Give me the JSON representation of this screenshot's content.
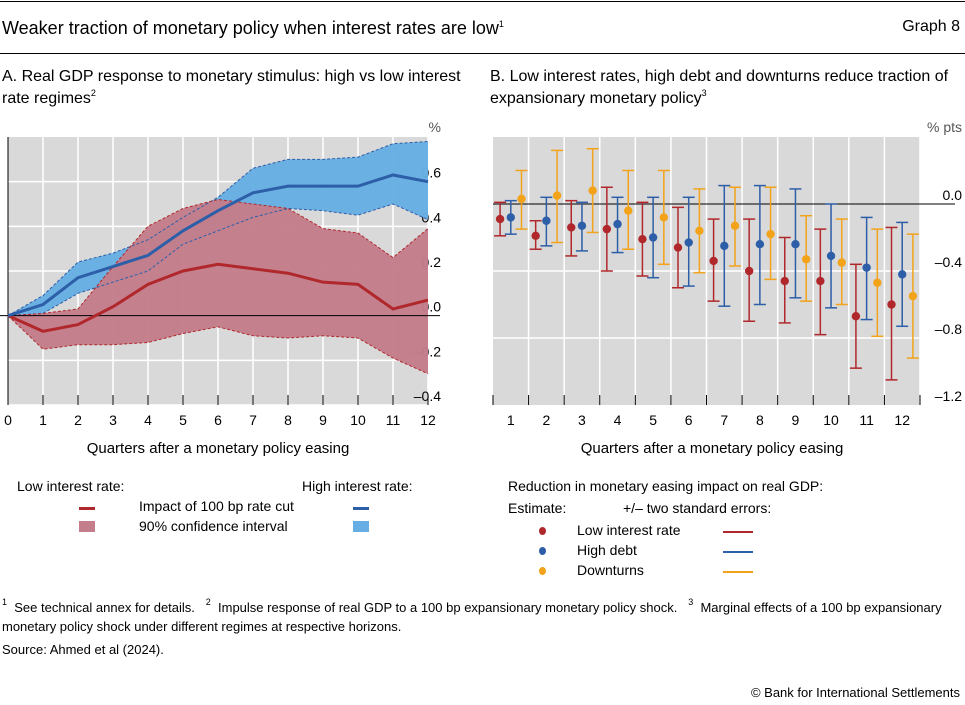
{
  "header": {
    "title": "Weaker traction of monetary policy when interest rates are low",
    "title_sup": "1",
    "graph_no": "Graph 8"
  },
  "colors": {
    "red": "#b0282c",
    "blue": "#2d5ea8",
    "red_band": "#c47d8b",
    "blue_band": "#66aee3",
    "yellow": "#f2a31a",
    "plot_bg": "#d9d9d9"
  },
  "chart_data": [
    {
      "type": "line",
      "title": "A. Real GDP response to monetary stimulus: high vs low interest rate regimes",
      "title_sup": "2",
      "unit": "%",
      "xlabel": "Quarters after a monetary policy easing",
      "x": [
        0,
        1,
        2,
        3,
        4,
        5,
        6,
        7,
        8,
        9,
        10,
        11,
        12
      ],
      "xlim": [
        0,
        12
      ],
      "ylim": [
        -0.4,
        0.8
      ],
      "yticks": [
        "0.6",
        "0.4",
        "0.2",
        "0.0",
        "–0.2",
        "–0.4"
      ],
      "ytick_values": [
        0.6,
        0.4,
        0.2,
        0.0,
        -0.2,
        -0.4
      ],
      "grid": true,
      "series": [
        {
          "group": "Low interest rate",
          "name": "Impact of 100 bp rate cut",
          "color": "red",
          "values": [
            0,
            -0.07,
            -0.04,
            0.04,
            0.14,
            0.2,
            0.23,
            0.21,
            0.19,
            0.15,
            0.14,
            0.03,
            0.07
          ],
          "ci_name": "90% confidence interval",
          "ci_color": "red_band",
          "ci_upper": [
            0,
            0.01,
            0.03,
            0.22,
            0.4,
            0.48,
            0.52,
            0.5,
            0.48,
            0.39,
            0.37,
            0.26,
            0.39
          ],
          "ci_lower": [
            0,
            -0.15,
            -0.13,
            -0.13,
            -0.12,
            -0.08,
            -0.05,
            -0.09,
            -0.1,
            -0.09,
            -0.1,
            -0.19,
            -0.26
          ]
        },
        {
          "group": "High interest rate",
          "name": "Impact of 100 bp rate cut",
          "color": "blue",
          "values": [
            0,
            0.05,
            0.17,
            0.22,
            0.27,
            0.38,
            0.47,
            0.55,
            0.58,
            0.58,
            0.58,
            0.63,
            0.6
          ],
          "ci_name": "90% confidence interval",
          "ci_color": "blue_band",
          "ci_upper": [
            0,
            0.09,
            0.24,
            0.28,
            0.34,
            0.44,
            0.53,
            0.66,
            0.7,
            0.7,
            0.71,
            0.77,
            0.78
          ],
          "ci_lower": [
            0,
            0.01,
            0.1,
            0.15,
            0.2,
            0.32,
            0.38,
            0.44,
            0.48,
            0.47,
            0.45,
            0.5,
            0.43
          ]
        }
      ],
      "legend": {
        "low_label": "Low interest rate:",
        "high_label": "High interest rate:",
        "line_label": "Impact of 100 bp rate cut",
        "band_label": "90% confidence interval",
        "placement": "bottom"
      }
    },
    {
      "type": "scatter",
      "title": "B. Low interest rates, high debt and downturns reduce traction of expansionary monetary policy",
      "title_sup": "3",
      "unit": "% pts",
      "xlabel": "Quarters after a monetary policy easing",
      "categories": [
        "1",
        "2",
        "3",
        "4",
        "5",
        "6",
        "7",
        "8",
        "9",
        "10",
        "11",
        "12"
      ],
      "ylim": [
        -1.2,
        0.4
      ],
      "yticks": [
        "0.0",
        "–0.4",
        "–0.8",
        "–1.2"
      ],
      "ytick_values": [
        0.0,
        -0.4,
        -0.8,
        -1.2
      ],
      "grid": true,
      "series": [
        {
          "name": "Low interest rate",
          "color": "red",
          "values": [
            -0.09,
            -0.19,
            -0.14,
            -0.15,
            -0.21,
            -0.26,
            -0.34,
            -0.4,
            -0.46,
            -0.46,
            -0.67,
            -0.6
          ],
          "upper": [
            0.01,
            -0.1,
            0.02,
            0.1,
            0.01,
            -0.02,
            -0.09,
            -0.09,
            -0.2,
            -0.15,
            -0.36,
            -0.14
          ],
          "lower": [
            -0.19,
            -0.27,
            -0.31,
            -0.4,
            -0.43,
            -0.5,
            -0.58,
            -0.7,
            -0.71,
            -0.78,
            -0.98,
            -1.05
          ]
        },
        {
          "name": "High debt",
          "color": "blue",
          "values": [
            -0.08,
            -0.1,
            -0.13,
            -0.12,
            -0.2,
            -0.23,
            -0.25,
            -0.24,
            -0.24,
            -0.31,
            -0.38,
            -0.42
          ],
          "upper": [
            0.02,
            0.04,
            0.01,
            0.04,
            0.04,
            0.04,
            0.11,
            0.11,
            0.09,
            0.0,
            -0.08,
            -0.11
          ],
          "lower": [
            -0.18,
            -0.25,
            -0.28,
            -0.29,
            -0.44,
            -0.49,
            -0.61,
            -0.6,
            -0.56,
            -0.62,
            -0.69,
            -0.73
          ]
        },
        {
          "name": "Downturns",
          "color": "yellow",
          "values": [
            0.03,
            0.05,
            0.08,
            -0.04,
            -0.08,
            -0.16,
            -0.13,
            -0.18,
            -0.33,
            -0.35,
            -0.47,
            -0.55
          ],
          "upper": [
            0.2,
            0.32,
            0.33,
            0.2,
            0.2,
            0.09,
            0.1,
            0.1,
            -0.07,
            -0.09,
            -0.15,
            -0.18
          ],
          "lower": [
            -0.15,
            -0.23,
            -0.17,
            -0.27,
            -0.36,
            -0.41,
            -0.37,
            -0.45,
            -0.58,
            -0.6,
            -0.79,
            -0.92
          ]
        }
      ],
      "legend": {
        "title": "Reduction in monetary easing impact on real GDP:",
        "estimate_label": "Estimate:",
        "se_label": "+/– two standard errors:",
        "placement": "bottom"
      }
    }
  ],
  "footnotes": [
    {
      "sup": "1",
      "text": "See technical annex for details."
    },
    {
      "sup": "2",
      "text": "Impulse response of real GDP to a 100 bp expansionary monetary policy shock."
    },
    {
      "sup": "3",
      "text": "Marginal effects of a 100 bp expansionary monetary policy shock under different regimes at respective horizons."
    }
  ],
  "source": "Source: Ahmed et al (2024).",
  "copyright": "© Bank for International Settlements"
}
